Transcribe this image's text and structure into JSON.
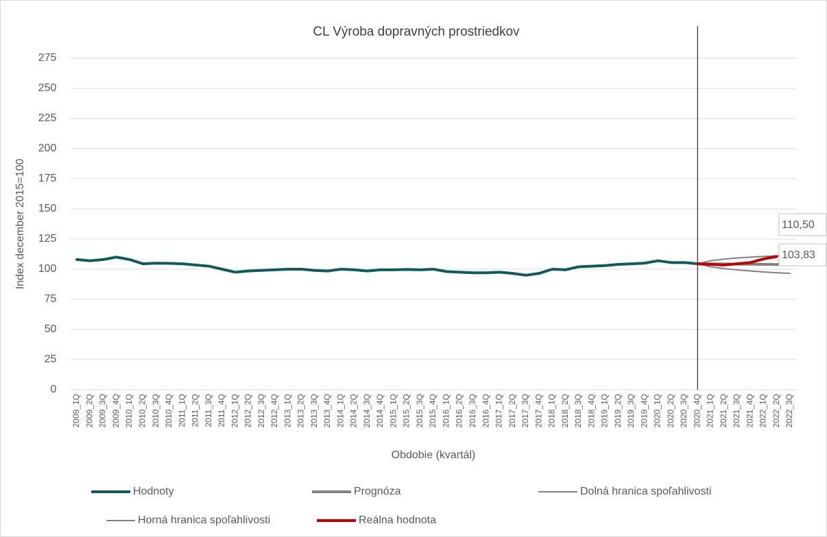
{
  "chart_data": {
    "type": "line",
    "title": "CL Výroba dopravných prostriedkov",
    "y_label": "Index december 2015=100",
    "x_label": "Obdobie (kvartál)",
    "categories": [
      "2009_1Q",
      "2009_2Q",
      "2009_3Q",
      "2009_4Q",
      "2010_1Q",
      "2010_2Q",
      "2010_3Q",
      "2010_4Q",
      "2011_1Q",
      "2011_2Q",
      "2011_3Q",
      "2011_4Q",
      "2012_1Q",
      "2012_2Q",
      "2012_3Q",
      "2012_4Q",
      "2013_1Q",
      "2013_2Q",
      "2013_3Q",
      "2013_4Q",
      "2014_1Q",
      "2014_2Q",
      "2014_3Q",
      "2014_4Q",
      "2015_1Q",
      "2015_2Q",
      "2015_3Q",
      "2015_4Q",
      "2016_1Q",
      "2016_2Q",
      "2016_3Q",
      "2016_4Q",
      "2017_1Q",
      "2017_2Q",
      "2017_3Q",
      "2017_4Q",
      "2018_1Q",
      "2018_2Q",
      "2018_3Q",
      "2018_4Q",
      "2019_1Q",
      "2019_2Q",
      "2019_3Q",
      "2019_4Q",
      "2020_1Q",
      "2020_2Q",
      "2020_3Q",
      "2020_4Q",
      "2021_1Q",
      "2021_2Q",
      "2021_3Q",
      "2021_4Q",
      "2022_1Q",
      "2022_2Q",
      "2022_3Q"
    ],
    "series": [
      {
        "name": "Hodnoty",
        "color": "#0e5c5a",
        "width": 4,
        "values": [
          108,
          107,
          108,
          110,
          108,
          104.5,
          105,
          104.8,
          104.5,
          103.5,
          102.5,
          100,
          97.5,
          98.5,
          99,
          99.5,
          100,
          100,
          99,
          98.5,
          100,
          99.5,
          98.5,
          99.5,
          99.5,
          99.8,
          99.5,
          100,
          98,
          97.5,
          97,
          97,
          97.5,
          96.5,
          95,
          96.5,
          100,
          99.5,
          102,
          102.5,
          103,
          104,
          104.5,
          105,
          107,
          105.5,
          105.5,
          104.5,
          null,
          null,
          null,
          null,
          null,
          null,
          null
        ]
      },
      {
        "name": "Prognóza",
        "color": "#808080",
        "width": 4,
        "values": [
          null,
          null,
          null,
          null,
          null,
          null,
          null,
          null,
          null,
          null,
          null,
          null,
          null,
          null,
          null,
          null,
          null,
          null,
          null,
          null,
          null,
          null,
          null,
          null,
          null,
          null,
          null,
          null,
          null,
          null,
          null,
          null,
          null,
          null,
          null,
          null,
          null,
          null,
          null,
          null,
          null,
          null,
          null,
          null,
          null,
          null,
          null,
          104.5,
          104.4,
          104.3,
          104.2,
          104.1,
          104,
          103.9,
          103.83
        ],
        "value_labels": [
          null,
          null,
          null,
          null,
          null,
          null,
          null,
          null,
          null,
          null,
          null,
          null,
          null,
          null,
          null,
          null,
          null,
          null,
          null,
          null,
          null,
          null,
          null,
          null,
          null,
          null,
          null,
          null,
          null,
          null,
          null,
          null,
          null,
          null,
          null,
          null,
          null,
          null,
          null,
          null,
          null,
          null,
          null,
          null,
          null,
          null,
          null,
          null,
          null,
          null,
          null,
          null,
          null,
          null,
          "103,83"
        ]
      },
      {
        "name": "Dolná hranica spoľahlivosti",
        "color": "#808080",
        "width": 2,
        "values": [
          null,
          null,
          null,
          null,
          null,
          null,
          null,
          null,
          null,
          null,
          null,
          null,
          null,
          null,
          null,
          null,
          null,
          null,
          null,
          null,
          null,
          null,
          null,
          null,
          null,
          null,
          null,
          null,
          null,
          null,
          null,
          null,
          null,
          null,
          null,
          null,
          null,
          null,
          null,
          null,
          null,
          null,
          null,
          null,
          null,
          null,
          null,
          104.5,
          102,
          100.5,
          99.4,
          98.5,
          97.7,
          97,
          96.5
        ]
      },
      {
        "name": "Horná hranica spoľahlivosti",
        "color": "#808080",
        "width": 2,
        "values": [
          null,
          null,
          null,
          null,
          null,
          null,
          null,
          null,
          null,
          null,
          null,
          null,
          null,
          null,
          null,
          null,
          null,
          null,
          null,
          null,
          null,
          null,
          null,
          null,
          null,
          null,
          null,
          null,
          null,
          null,
          null,
          null,
          null,
          null,
          null,
          null,
          null,
          null,
          null,
          null,
          null,
          null,
          null,
          null,
          null,
          null,
          null,
          104.5,
          107,
          108.4,
          109.3,
          110,
          110.6,
          111.1,
          111.5
        ]
      },
      {
        "name": "Reálna hodnota",
        "color": "#c00000",
        "width": 4,
        "values": [
          null,
          null,
          null,
          null,
          null,
          null,
          null,
          null,
          null,
          null,
          null,
          null,
          null,
          null,
          null,
          null,
          null,
          null,
          null,
          null,
          null,
          null,
          null,
          null,
          null,
          null,
          null,
          null,
          null,
          null,
          null,
          null,
          null,
          null,
          null,
          null,
          null,
          null,
          null,
          null,
          null,
          null,
          null,
          null,
          null,
          null,
          null,
          104.5,
          104,
          103.5,
          104.5,
          105.5,
          108.5,
          110.5,
          null
        ],
        "value_labels": [
          null,
          null,
          null,
          null,
          null,
          null,
          null,
          null,
          null,
          null,
          null,
          null,
          null,
          null,
          null,
          null,
          null,
          null,
          null,
          null,
          null,
          null,
          null,
          null,
          null,
          null,
          null,
          null,
          null,
          null,
          null,
          null,
          null,
          null,
          null,
          null,
          null,
          null,
          null,
          null,
          null,
          null,
          null,
          null,
          null,
          null,
          null,
          null,
          null,
          null,
          null,
          null,
          null,
          "110,50",
          null
        ]
      }
    ],
    "ylim": [
      0,
      275
    ],
    "yticks": [
      0,
      25,
      50,
      75,
      100,
      125,
      150,
      175,
      200,
      225,
      250,
      275
    ],
    "grid": true
  }
}
